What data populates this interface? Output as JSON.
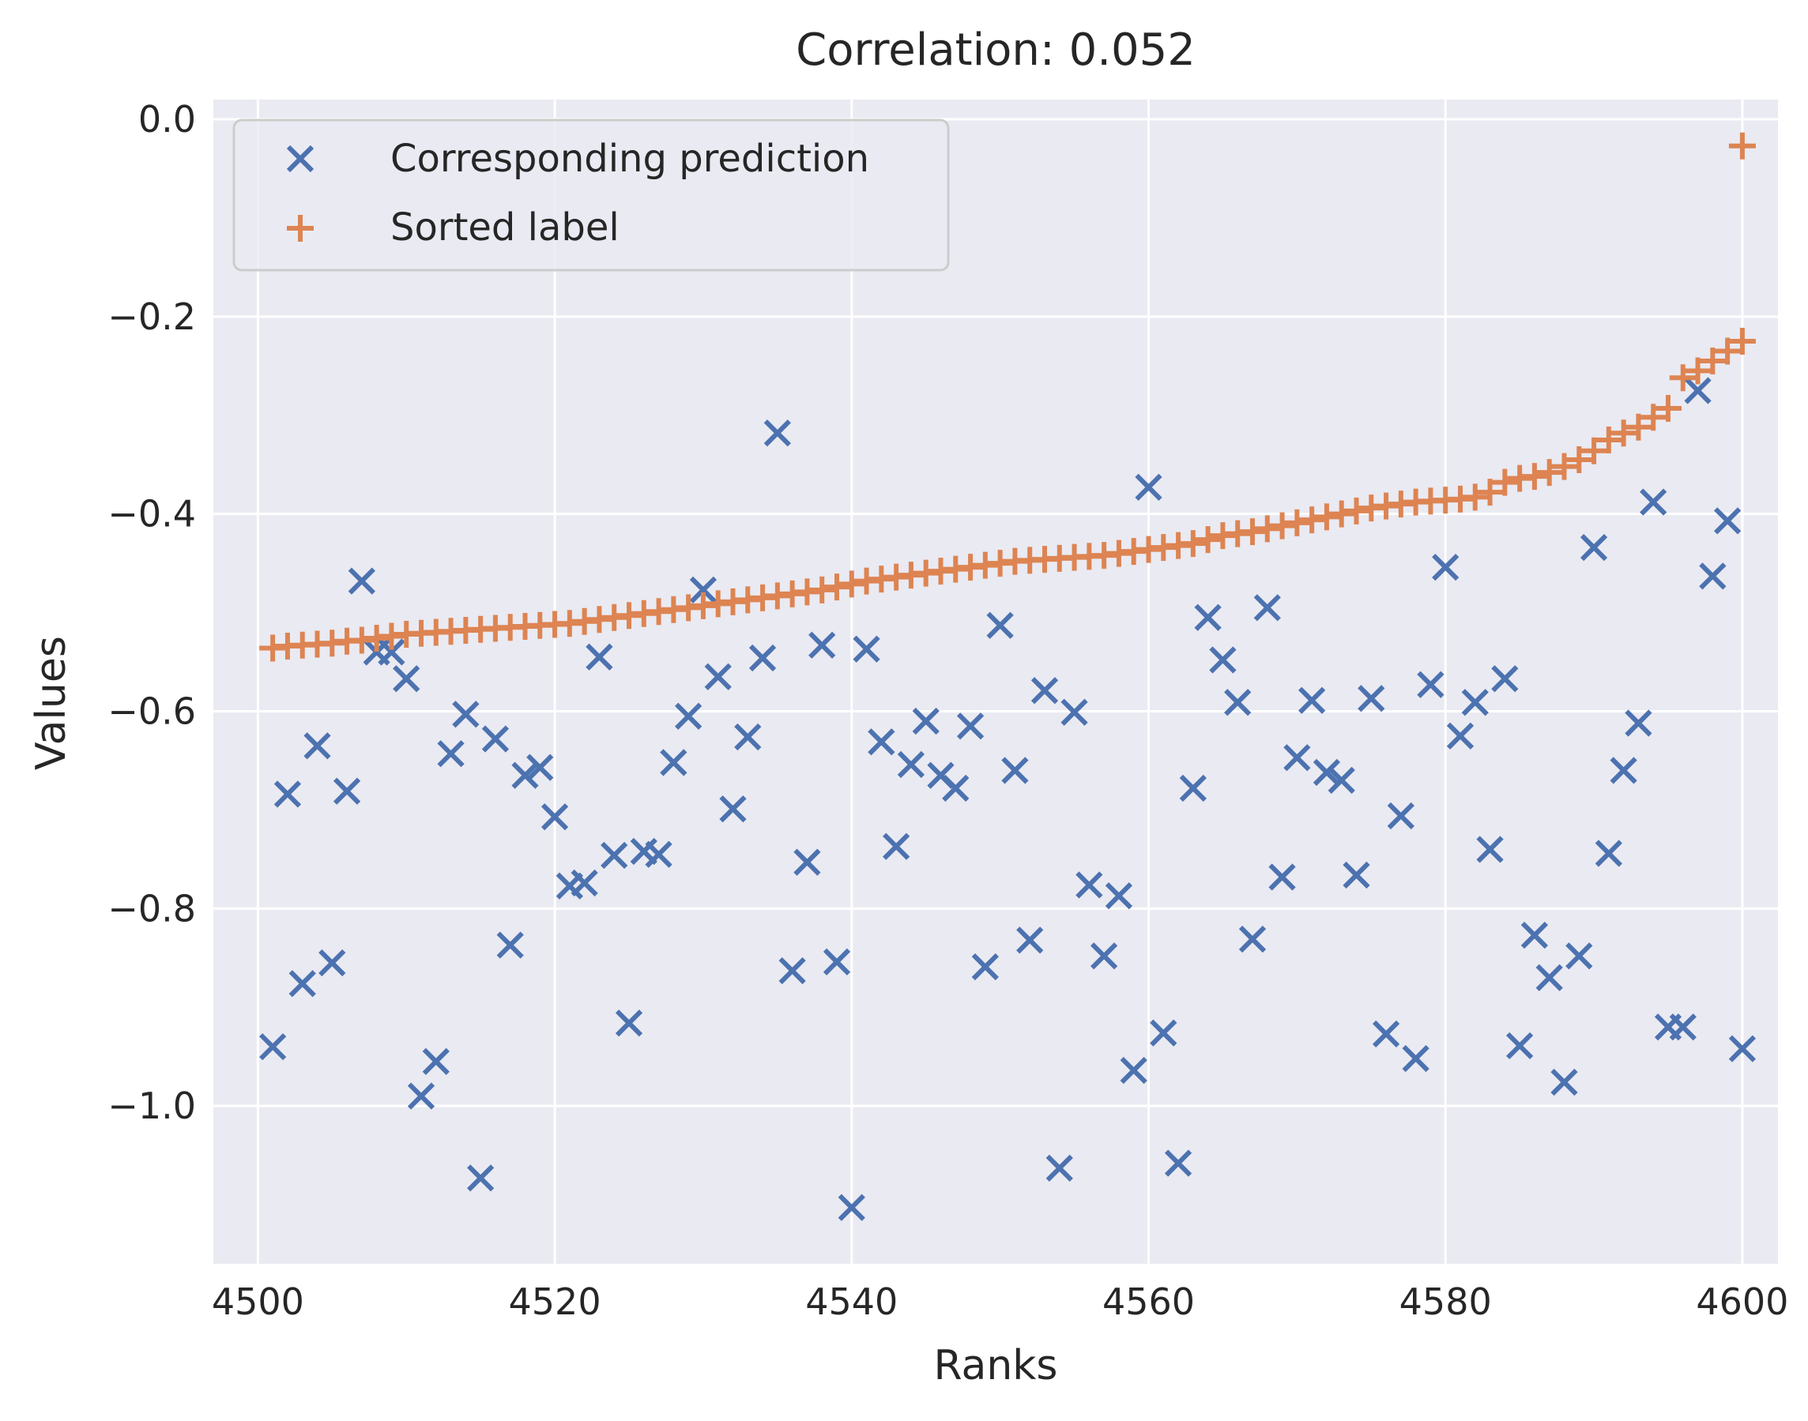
{
  "chart_data": {
    "type": "scatter",
    "title": "Correlation: 0.052",
    "xlabel": "Ranks",
    "ylabel": "Values",
    "xlim": [
      4497,
      4602.4
    ],
    "ylim": [
      -1.16,
      0.02
    ],
    "xticks": [
      4500,
      4520,
      4540,
      4560,
      4580,
      4600
    ],
    "xtick_labels": [
      "4500",
      "4520",
      "4540",
      "4560",
      "4580",
      "4600"
    ],
    "yticks": [
      0.0,
      -0.2,
      -0.4,
      -0.6,
      -0.8,
      -1.0
    ],
    "ytick_labels": [
      "0.0",
      "−0.2",
      "−0.4",
      "−0.6",
      "−0.8",
      "−1.0"
    ],
    "grid": true,
    "legend_position": "top-left",
    "series": [
      {
        "name": "Corresponding prediction",
        "marker": "x",
        "color": "#4c72b0",
        "x": [
          4501,
          4502,
          4503,
          4504,
          4505,
          4506,
          4507,
          4508,
          4509,
          4510,
          4511,
          4512,
          4513,
          4514,
          4515,
          4516,
          4517,
          4518,
          4519,
          4520,
          4521,
          4522,
          4523,
          4524,
          4525,
          4526,
          4527,
          4528,
          4529,
          4530,
          4531,
          4532,
          4533,
          4534,
          4535,
          4536,
          4537,
          4538,
          4539,
          4540,
          4541,
          4542,
          4543,
          4544,
          4545,
          4546,
          4547,
          4548,
          4549,
          4550,
          4551,
          4552,
          4553,
          4554,
          4555,
          4556,
          4557,
          4558,
          4559,
          4560,
          4561,
          4562,
          4563,
          4564,
          4565,
          4566,
          4567,
          4568,
          4569,
          4570,
          4571,
          4572,
          4573,
          4574,
          4575,
          4576,
          4577,
          4578,
          4579,
          4580,
          4581,
          4582,
          4583,
          4584,
          4585,
          4586,
          4587,
          4588,
          4589,
          4590,
          4591,
          4592,
          4593,
          4594,
          4595,
          4596,
          4597,
          4598,
          4599,
          4600
        ],
        "y": [
          -0.94,
          -0.684,
          -0.876,
          -0.635,
          -0.855,
          -0.681,
          -0.468,
          -0.54,
          -0.54,
          -0.567,
          -0.99,
          -0.955,
          -0.643,
          -0.603,
          -1.073,
          -0.628,
          -0.837,
          -0.665,
          -0.657,
          -0.707,
          -0.777,
          -0.774,
          -0.545,
          -0.746,
          -0.916,
          -0.742,
          -0.745,
          -0.652,
          -0.605,
          -0.477,
          -0.565,
          -0.699,
          -0.626,
          -0.546,
          -0.318,
          -0.863,
          -0.753,
          -0.533,
          -0.854,
          -1.103,
          -0.537,
          -0.631,
          -0.737,
          -0.654,
          -0.61,
          -0.665,
          -0.678,
          -0.615,
          -0.859,
          -0.513,
          -0.66,
          -0.832,
          -0.579,
          -1.063,
          -0.601,
          -0.776,
          -0.848,
          -0.787,
          -0.964,
          -0.373,
          -0.926,
          -1.058,
          -0.678,
          -0.505,
          -0.548,
          -0.591,
          -0.831,
          -0.495,
          -0.768,
          -0.647,
          -0.589,
          -0.662,
          -0.67,
          -0.766,
          -0.587,
          -0.927,
          -0.706,
          -0.952,
          -0.573,
          -0.454,
          -0.625,
          -0.591,
          -0.74,
          -0.567,
          -0.939,
          -0.827,
          -0.87,
          -0.976,
          -0.848,
          -0.434,
          -0.744,
          -0.66,
          -0.612,
          -0.388,
          -0.92,
          -0.92,
          -0.275,
          -0.463,
          -0.407,
          -0.942
        ]
      },
      {
        "name": "Sorted label",
        "marker": "+",
        "color": "#dd8452",
        "x": [
          4501,
          4502,
          4503,
          4504,
          4505,
          4506,
          4507,
          4508,
          4509,
          4510,
          4511,
          4512,
          4513,
          4514,
          4515,
          4516,
          4517,
          4518,
          4519,
          4520,
          4521,
          4522,
          4523,
          4524,
          4525,
          4526,
          4527,
          4528,
          4529,
          4530,
          4531,
          4532,
          4533,
          4534,
          4535,
          4536,
          4537,
          4538,
          4539,
          4540,
          4541,
          4542,
          4543,
          4544,
          4545,
          4546,
          4547,
          4548,
          4549,
          4550,
          4551,
          4552,
          4553,
          4554,
          4555,
          4556,
          4557,
          4558,
          4559,
          4560,
          4561,
          4562,
          4563,
          4564,
          4565,
          4566,
          4567,
          4568,
          4569,
          4570,
          4571,
          4572,
          4573,
          4574,
          4575,
          4576,
          4577,
          4578,
          4579,
          4580,
          4581,
          4582,
          4583,
          4584,
          4585,
          4586,
          4587,
          4588,
          4589,
          4590,
          4591,
          4592,
          4593,
          4594,
          4595,
          4596,
          4597,
          4598,
          4599,
          4600
        ],
        "y": [
          -0.536,
          -0.534,
          -0.533,
          -0.532,
          -0.531,
          -0.529,
          -0.528,
          -0.526,
          -0.524,
          -0.522,
          -0.521,
          -0.52,
          -0.519,
          -0.518,
          -0.517,
          -0.516,
          -0.515,
          -0.514,
          -0.513,
          -0.512,
          -0.511,
          -0.509,
          -0.507,
          -0.505,
          -0.503,
          -0.501,
          -0.499,
          -0.497,
          -0.495,
          -0.493,
          -0.491,
          -0.489,
          -0.487,
          -0.485,
          -0.483,
          -0.481,
          -0.479,
          -0.477,
          -0.474,
          -0.471,
          -0.468,
          -0.466,
          -0.464,
          -0.462,
          -0.46,
          -0.458,
          -0.456,
          -0.454,
          -0.452,
          -0.45,
          -0.448,
          -0.447,
          -0.446,
          -0.445,
          -0.444,
          -0.443,
          -0.442,
          -0.44,
          -0.438,
          -0.436,
          -0.434,
          -0.432,
          -0.43,
          -0.426,
          -0.422,
          -0.42,
          -0.418,
          -0.415,
          -0.412,
          -0.409,
          -0.406,
          -0.403,
          -0.4,
          -0.397,
          -0.394,
          -0.392,
          -0.39,
          -0.388,
          -0.387,
          -0.386,
          -0.385,
          -0.383,
          -0.378,
          -0.368,
          -0.364,
          -0.362,
          -0.358,
          -0.352,
          -0.345,
          -0.336,
          -0.325,
          -0.318,
          -0.312,
          -0.302,
          -0.293,
          -0.262,
          -0.255,
          -0.245,
          -0.235,
          -0.225
        ]
      }
    ],
    "extra_points": [
      {
        "series": "Sorted label",
        "x": 4600,
        "y": -0.027
      }
    ]
  }
}
